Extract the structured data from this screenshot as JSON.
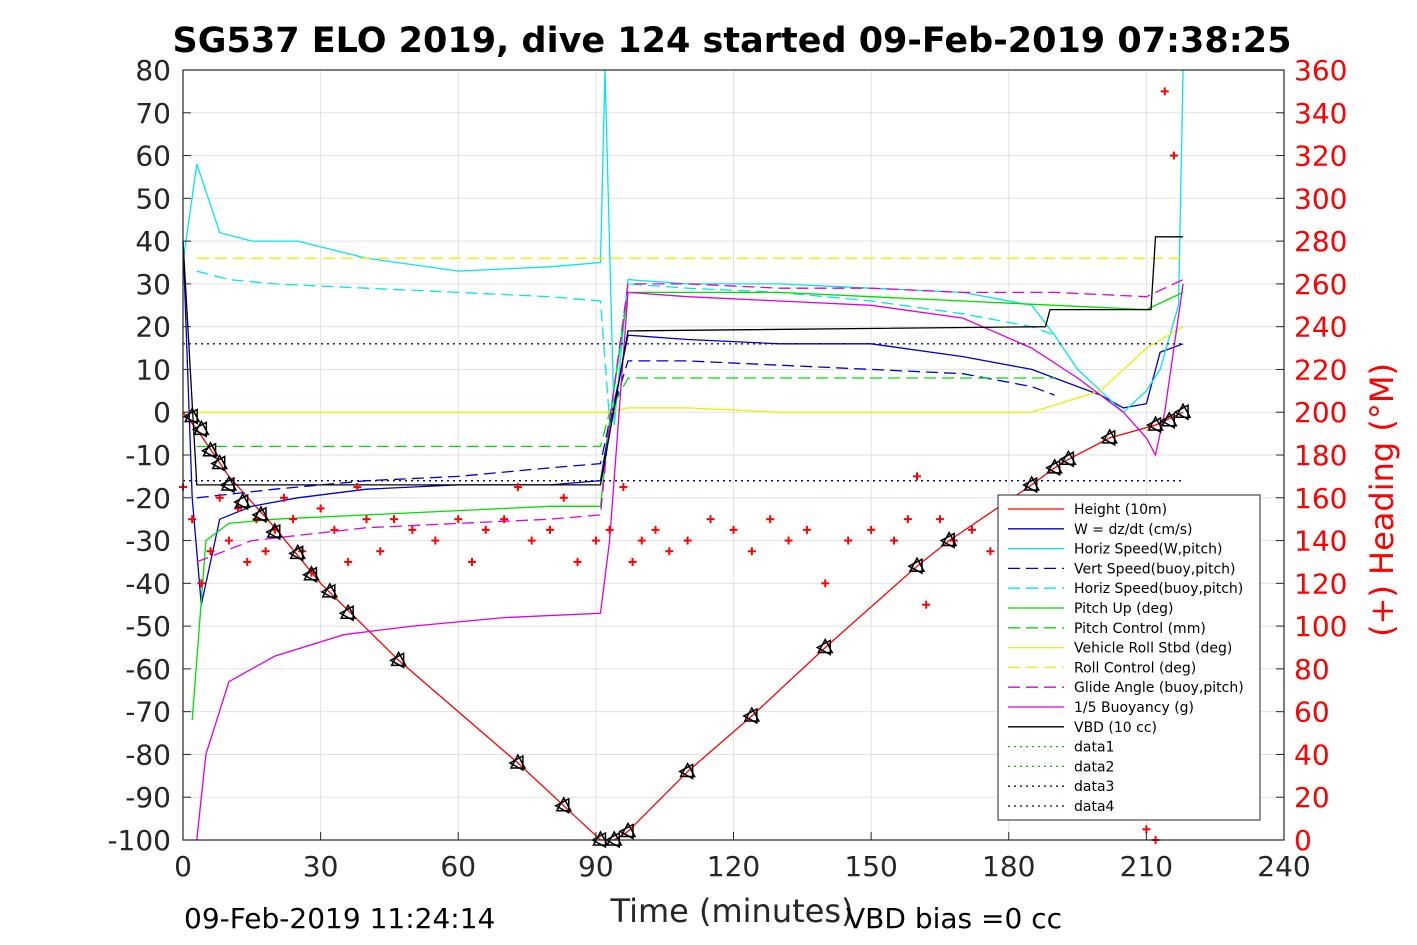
{
  "chart_data": {
    "type": "line",
    "title": "SG537 ELO 2019, dive 124 started 09-Feb-2019 07:38:25",
    "xlabel": "Time (minutes)",
    "ylabel": "",
    "y2label": "(+) Heading (°M)",
    "xlim": [
      0,
      240
    ],
    "ylim": [
      -100,
      80
    ],
    "y2lim": [
      0,
      360
    ],
    "xticks": [
      "0",
      "30",
      "60",
      "90",
      "120",
      "150",
      "180",
      "210",
      "240"
    ],
    "yticks": [
      "80",
      "70",
      "60",
      "50",
      "40",
      "30",
      "20",
      "10",
      "0",
      "-10",
      "-20",
      "-30",
      "-40",
      "-50",
      "-60",
      "-70",
      "-80",
      "-90",
      "-100"
    ],
    "y2ticks": [
      "360",
      "340",
      "320",
      "300",
      "280",
      "260",
      "240",
      "220",
      "200",
      "180",
      "160",
      "140",
      "120",
      "100",
      "80",
      "60",
      "40",
      "20",
      "0"
    ],
    "grid": true,
    "legend_position": "lower-right",
    "footer_left": "09-Feb-2019 11:24:14",
    "footer_right": "VBD bias =0 cc",
    "colors": {
      "height": "#ff0000",
      "w": "#0000cd",
      "horiz_w": "#00e5ee",
      "vert_buoy": "#0000cd",
      "horiz_buoy": "#00e5ee",
      "pitch": "#00dd00",
      "pitch_ctrl": "#00dd00",
      "roll": "#eeee00",
      "roll_ctrl": "#eeee00",
      "glide": "#dd00dd",
      "buoyancy": "#dd00dd",
      "vbd": "#000000",
      "heading": "#ff0000",
      "data_dotted": "#00bb00",
      "data_blue": "#000080"
    },
    "legend": [
      {
        "label": "Height (10m)",
        "key": "height",
        "dash": ""
      },
      {
        "label": "W = dz/dt (cm/s)",
        "key": "w",
        "dash": ""
      },
      {
        "label": "Horiz Speed(W,pitch)",
        "key": "horiz_w",
        "dash": ""
      },
      {
        "label": "Vert Speed(buoy,pitch)",
        "key": "vert_buoy",
        "dash": "12,6"
      },
      {
        "label": "Horiz Speed(buoy,pitch)",
        "key": "horiz_buoy",
        "dash": "12,6"
      },
      {
        "label": "Pitch Up (deg)",
        "key": "pitch",
        "dash": ""
      },
      {
        "label": "Pitch Control (mm)",
        "key": "pitch_ctrl",
        "dash": "12,6"
      },
      {
        "label": "Vehicle Roll Stbd (deg)",
        "key": "roll",
        "dash": ""
      },
      {
        "label": "Roll Control (deg)",
        "key": "roll_ctrl",
        "dash": "12,6"
      },
      {
        "label": "Glide Angle (buoy,pitch)",
        "key": "glide",
        "dash": "12,6"
      },
      {
        "label": "1/5 Buoyancy (g)",
        "key": "buoyancy",
        "dash": ""
      },
      {
        "label": "VBD (10 cc)",
        "key": "vbd",
        "dash": ""
      },
      {
        "label": "data1",
        "key": "data_dotted",
        "dash": "2,4"
      },
      {
        "label": "data2",
        "key": "data_dotted",
        "dash": "2,4"
      },
      {
        "label": "data3",
        "key": "data_blue",
        "dash": "2,4"
      },
      {
        "label": "data4",
        "key": "data_blue",
        "dash": "2,4"
      }
    ],
    "series": [
      {
        "key": "height",
        "x": [
          0,
          3,
          10,
          20,
          30,
          47,
          73,
          83,
          91,
          94,
          97,
          110,
          124,
          140,
          160,
          167,
          185,
          190,
          193,
          202,
          212,
          218
        ],
        "y": [
          0,
          -4,
          -15,
          -27,
          -40,
          -58,
          -82,
          -92,
          -100,
          -100,
          -98,
          -84,
          -71,
          -55,
          -36,
          -30,
          -17,
          -13,
          -11,
          -6,
          -3,
          0
        ]
      },
      {
        "key": "w",
        "x": [
          0,
          2,
          4,
          8,
          15,
          25,
          40,
          60,
          80,
          91,
          93,
          97,
          110,
          130,
          150,
          170,
          185,
          190,
          200,
          205,
          210,
          213,
          218
        ],
        "y": [
          40,
          -20,
          -45,
          -25,
          -22,
          -20,
          -18,
          -17,
          -17,
          -16,
          -3,
          18,
          17,
          16,
          16,
          13,
          10,
          8,
          4,
          1,
          2,
          14,
          16
        ]
      },
      {
        "key": "horiz_w",
        "x": [
          0,
          3,
          8,
          15,
          25,
          40,
          60,
          80,
          91,
          92,
          94,
          97,
          110,
          130,
          150,
          170,
          185,
          190,
          195,
          200,
          205,
          210,
          213,
          217,
          218
        ],
        "y": [
          35,
          58,
          42,
          40,
          40,
          36,
          33,
          34,
          35,
          80,
          -3,
          31,
          30,
          30,
          29,
          28,
          25,
          18,
          10,
          5,
          0,
          5,
          10,
          25,
          80
        ]
      },
      {
        "key": "vert_buoy",
        "x": [
          3,
          20,
          40,
          60,
          80,
          91,
          93,
          97,
          110,
          130,
          150,
          170,
          185,
          190
        ],
        "y": [
          -20,
          -18,
          -16,
          -15,
          -13,
          -12,
          -2,
          12,
          12,
          11,
          10,
          9,
          6,
          4
        ]
      },
      {
        "key": "horiz_buoy",
        "x": [
          3,
          10,
          20,
          40,
          60,
          80,
          91,
          93,
          97,
          110,
          130,
          150,
          170,
          185,
          190
        ],
        "y": [
          33,
          31,
          30,
          29,
          28,
          27,
          26,
          -2,
          30,
          29,
          28,
          26,
          23,
          20,
          18
        ]
      },
      {
        "key": "pitch",
        "x": [
          2,
          5,
          10,
          20,
          40,
          60,
          80,
          91,
          93,
          97,
          110,
          130,
          150,
          170,
          190,
          210,
          218
        ],
        "y": [
          -72,
          -30,
          -26,
          -25,
          -24,
          -23,
          -22,
          -22,
          -2,
          28,
          28,
          28,
          27,
          26,
          25,
          24,
          28
        ]
      },
      {
        "key": "pitch_ctrl",
        "x": [
          3,
          15,
          40,
          60,
          80,
          91,
          93,
          97,
          110,
          130,
          150,
          170,
          190
        ],
        "y": [
          -8,
          -8,
          -8,
          -8,
          -8,
          -8,
          0,
          8,
          8,
          8,
          8,
          8,
          8
        ]
      },
      {
        "key": "roll",
        "x": [
          0,
          5,
          20,
          40,
          60,
          80,
          91,
          93,
          97,
          110,
          130,
          150,
          170,
          185,
          200,
          210,
          218
        ],
        "y": [
          0,
          0,
          0,
          0,
          0,
          0,
          0,
          0,
          1,
          1,
          0,
          0,
          0,
          0,
          5,
          15,
          20
        ]
      },
      {
        "key": "roll_ctrl",
        "x": [
          3,
          218
        ],
        "y": [
          36,
          36
        ]
      },
      {
        "key": "glide",
        "x": [
          3,
          15,
          40,
          60,
          80,
          91,
          93,
          97,
          110,
          130,
          150,
          170,
          190,
          210,
          218
        ],
        "y": [
          -35,
          -30,
          -27,
          -26,
          -25,
          -24,
          -2,
          30,
          30,
          29,
          29,
          28,
          28,
          27,
          31
        ]
      },
      {
        "key": "buoyancy",
        "x": [
          3,
          5,
          10,
          20,
          35,
          50,
          70,
          91,
          93,
          97,
          110,
          130,
          150,
          170,
          185,
          195,
          205,
          210,
          212,
          214,
          218
        ],
        "y": [
          -100,
          -80,
          -63,
          -57,
          -52,
          -50,
          -48,
          -47,
          -30,
          28,
          27,
          26,
          25,
          22,
          15,
          8,
          0,
          -6,
          -10,
          0,
          30
        ]
      },
      {
        "key": "vbd",
        "x": [
          0,
          3,
          91,
          97,
          188,
          189,
          211,
          212,
          218
        ],
        "y": [
          40,
          -17,
          -17,
          19,
          20,
          24,
          24,
          41,
          41
        ]
      },
      {
        "key": "data3",
        "x": [
          0,
          218
        ],
        "y": [
          16,
          16
        ]
      },
      {
        "key": "data4",
        "x": [
          0,
          218
        ],
        "y": [
          -16,
          -16
        ]
      }
    ],
    "heading_series": {
      "axis": "right",
      "x": [
        0,
        2,
        4,
        6,
        8,
        10,
        12,
        14,
        16,
        18,
        20,
        22,
        24,
        26,
        28,
        30,
        33,
        36,
        38,
        40,
        43,
        46,
        50,
        55,
        60,
        63,
        66,
        70,
        73,
        76,
        80,
        83,
        86,
        90,
        93,
        96,
        98,
        100,
        103,
        106,
        110,
        115,
        120,
        124,
        128,
        132,
        136,
        140,
        145,
        150,
        155,
        158,
        160,
        162,
        165,
        168,
        172,
        176,
        180,
        185,
        190,
        195,
        200,
        205,
        210,
        212,
        214,
        216
      ],
      "y": [
        165,
        150,
        120,
        135,
        160,
        140,
        155,
        130,
        150,
        135,
        145,
        160,
        150,
        135,
        125,
        155,
        145,
        130,
        165,
        150,
        135,
        150,
        145,
        140,
        150,
        130,
        145,
        150,
        165,
        140,
        145,
        160,
        130,
        140,
        145,
        165,
        130,
        140,
        145,
        135,
        140,
        150,
        145,
        135,
        150,
        140,
        145,
        120,
        140,
        145,
        140,
        150,
        170,
        110,
        150,
        140,
        145,
        135,
        150,
        145,
        140,
        150,
        135,
        20,
        5,
        0,
        350,
        320
      ]
    },
    "markers": {
      "x": [
        2,
        4,
        6,
        8,
        10,
        13,
        17,
        20,
        25,
        28,
        32,
        36,
        47,
        73,
        83,
        91,
        94,
        97,
        110,
        124,
        140,
        160,
        167,
        185,
        190,
        193,
        202,
        212,
        215,
        218
      ],
      "y": [
        -1,
        -4,
        -9,
        -12,
        -17,
        -21,
        -24,
        -28,
        -33,
        -38,
        -42,
        -47,
        -58,
        -82,
        -92,
        -100,
        -100,
        -98,
        -84,
        -71,
        -55,
        -36,
        -30,
        -17,
        -13,
        -11,
        -6,
        -3,
        -2,
        0
      ]
    }
  }
}
